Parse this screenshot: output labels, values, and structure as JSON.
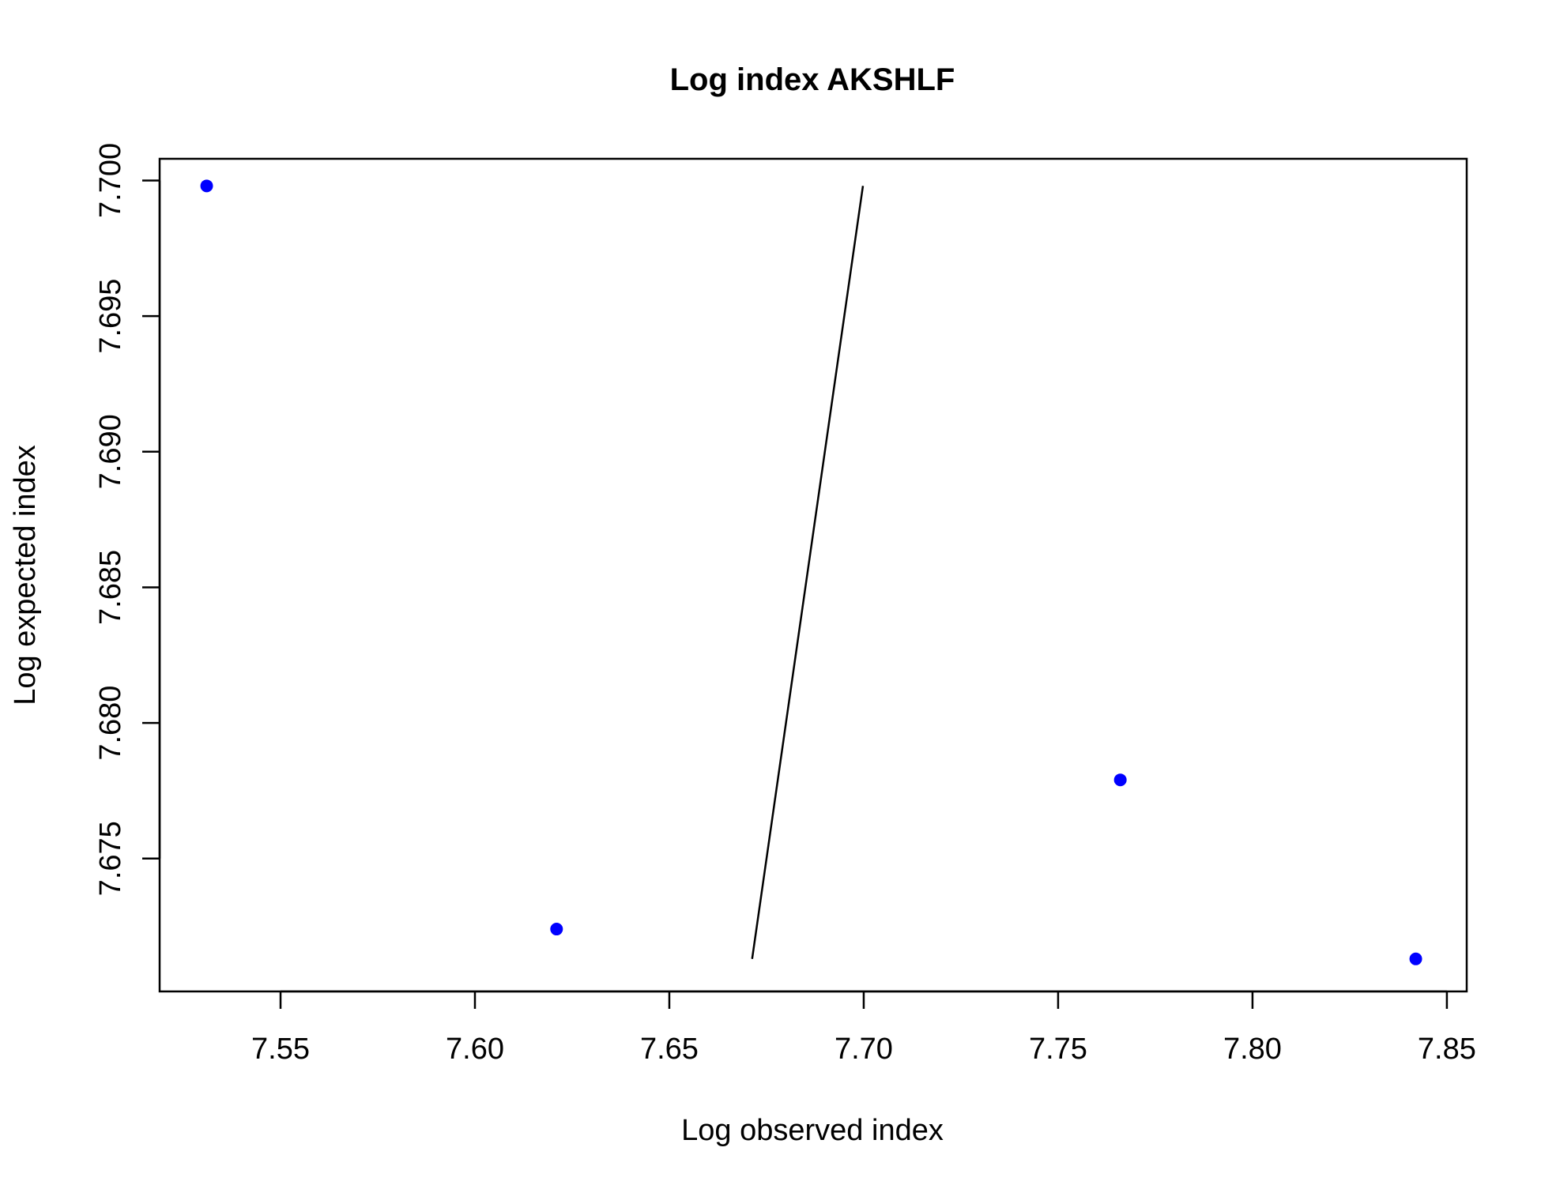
{
  "chart_data": {
    "type": "scatter",
    "title": "Log index AKSHLF",
    "xlabel": "Log observed index",
    "ylabel": "Log expected index",
    "xlim": [
      7.5189,
      7.8551
    ],
    "ylim": [
      7.6701,
      7.7008
    ],
    "xticks": [
      "7.55",
      "7.60",
      "7.65",
      "7.70",
      "7.75",
      "7.80",
      "7.85"
    ],
    "yticks": [
      "7.675",
      "7.680",
      "7.685",
      "7.690",
      "7.695",
      "7.700"
    ],
    "points": [
      {
        "x": 7.531,
        "y": 7.6998
      },
      {
        "x": 7.621,
        "y": 7.6724
      },
      {
        "x": 7.766,
        "y": 7.6779
      },
      {
        "x": 7.842,
        "y": 7.6713
      }
    ],
    "reference_line": {
      "from": [
        7.6713,
        7.6713
      ],
      "to": [
        7.6998,
        7.6998
      ]
    },
    "point_color": "#0000FF",
    "line_color": "#000000",
    "grid": false,
    "legend": "none"
  }
}
